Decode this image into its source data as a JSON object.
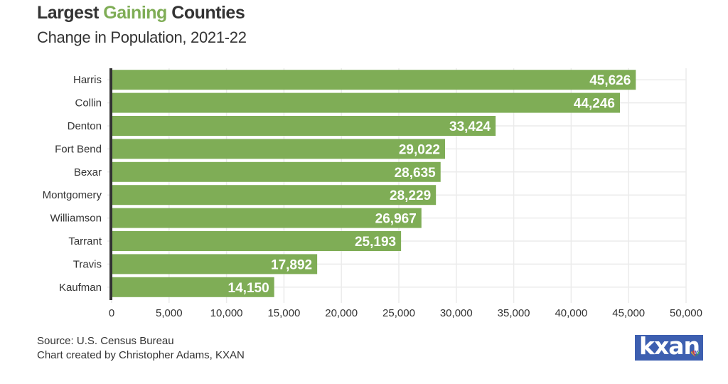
{
  "header": {
    "title_prefix": "Largest ",
    "title_highlight": "Gaining",
    "title_suffix": " Counties",
    "subtitle": "Change in Population, 2021-22"
  },
  "footer": {
    "source": "Source: U.S. Census Bureau",
    "credit": "Chart created by Christopher Adams, KXAN"
  },
  "logo": {
    "text": "kxan",
    "icon": "nbc-peacock-icon"
  },
  "colors": {
    "bar": "#7fad56",
    "highlight": "#7fad56",
    "axis": "#333333",
    "grid": "#ebebeb",
    "text": "#333333",
    "logo_bg": "#3d5fb0"
  },
  "chart_data": {
    "type": "bar",
    "orientation": "horizontal",
    "title": "Largest Gaining Counties",
    "subtitle": "Change in Population, 2021-22",
    "xlabel": "",
    "ylabel": "",
    "categories": [
      "Harris",
      "Collin",
      "Denton",
      "Fort Bend",
      "Bexar",
      "Montgomery",
      "Williamson",
      "Tarrant",
      "Travis",
      "Kaufman"
    ],
    "values": [
      45626,
      44246,
      33424,
      29022,
      28635,
      28229,
      26967,
      25193,
      17892,
      14150
    ],
    "value_labels": [
      "45,626",
      "44,246",
      "33,424",
      "29,022",
      "28,635",
      "28,229",
      "26,967",
      "25,193",
      "17,892",
      "14,150"
    ],
    "xlim": [
      0,
      50000
    ],
    "xticks": [
      0,
      5000,
      10000,
      15000,
      20000,
      25000,
      30000,
      35000,
      40000,
      45000,
      50000
    ],
    "xtick_labels": [
      "0",
      "5,000",
      "10,000",
      "15,000",
      "20,000",
      "25,000",
      "30,000",
      "35,000",
      "40,000",
      "45,000",
      "50,000"
    ],
    "grid": true,
    "legend": "none"
  }
}
